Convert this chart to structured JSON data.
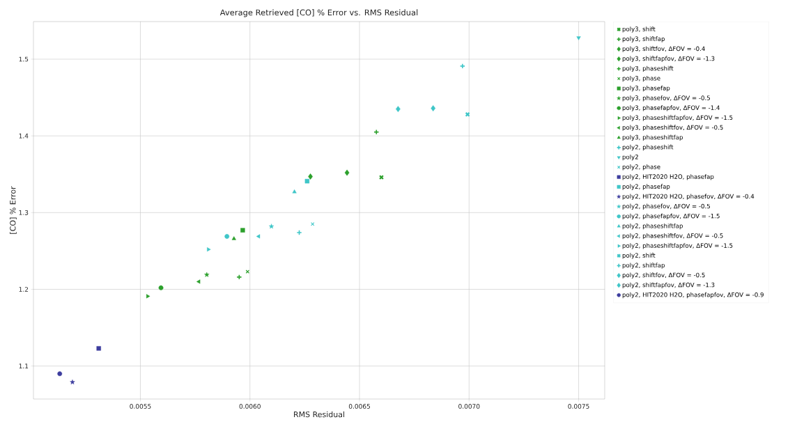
{
  "chart_data": {
    "type": "scatter",
    "title": "Average Retrieved [CO] % Error vs. RMS Residual",
    "xlabel": "RMS Residual",
    "ylabel": "[CO] % Error",
    "xlim": [
      0.005012,
      0.007619
    ],
    "ylim": [
      1.057,
      1.549
    ],
    "xticks": [
      0.0055,
      {
        "value": 0.006,
        "label": "0.0060"
      },
      0.0065,
      {
        "value": 0.007,
        "label": "0.0070"
      },
      0.0075
    ],
    "yticks": [
      1.1,
      1.2,
      1.3,
      1.4,
      1.5
    ],
    "grid": true,
    "legend": "right",
    "series": [
      {
        "name": "poly3, shift",
        "color": "#2ca02c",
        "marker": "X",
        "x": [
          0.0066
        ],
        "values": [
          1.346
        ]
      },
      {
        "name": "poly3, shiftfap",
        "color": "#2ca02c",
        "marker": "plus",
        "x": [
          0.006577
        ],
        "values": [
          1.405
        ]
      },
      {
        "name": "poly3, shiftfov, ΔFOV = -0.4",
        "color": "#2ca02c",
        "marker": "diamond",
        "x": [
          0.006443
        ],
        "values": [
          1.352
        ]
      },
      {
        "name": "poly3, shiftfapfov, ΔFOV = -1.3",
        "color": "#2ca02c",
        "marker": "diamond",
        "x": [
          0.006276
        ],
        "values": [
          1.347
        ]
      },
      {
        "name": "poly3, phaseshift",
        "color": "#2ca02c",
        "marker": "plus",
        "x": [
          0.005951
        ],
        "values": [
          1.216
        ]
      },
      {
        "name": "poly3, phase",
        "color": "#2ca02c",
        "marker": "cross",
        "x": [
          0.005989
        ],
        "values": [
          1.223
        ]
      },
      {
        "name": "poly3, phasefap",
        "color": "#2ca02c",
        "marker": "square",
        "x": [
          0.005967
        ],
        "values": [
          1.277
        ]
      },
      {
        "name": "poly3, phasefov, ΔFOV = -0.5",
        "color": "#2ca02c",
        "marker": "star",
        "x": [
          0.005803
        ],
        "values": [
          1.219
        ]
      },
      {
        "name": "poly3, phasefapfov, ΔFOV = -1.4",
        "color": "#2ca02c",
        "marker": "circle",
        "x": [
          0.005594
        ],
        "values": [
          1.202
        ]
      },
      {
        "name": "poly3, phaseshiftfapfov, ΔFOV = -1.5",
        "color": "#2ca02c",
        "marker": "triangle_right",
        "x": [
          0.005533
        ],
        "values": [
          1.191
        ]
      },
      {
        "name": "poly3, phaseshiftfov, ΔFOV = -0.5",
        "color": "#2ca02c",
        "marker": "triangle_left",
        "x": [
          0.005767
        ],
        "values": [
          1.21
        ]
      },
      {
        "name": "poly3, phaseshiftfap",
        "color": "#2ca02c",
        "marker": "triangle",
        "x": [
          0.005927
        ],
        "values": [
          1.266
        ]
      },
      {
        "name": "poly2, phaseshift",
        "color": "#3fc6c8",
        "marker": "plus",
        "x": [
          0.006225
        ],
        "values": [
          1.274
        ]
      },
      {
        "name": "poly2",
        "color": "#3fc6c8",
        "marker": "triangle_down",
        "x": [
          0.0075
        ],
        "values": [
          1.528
        ]
      },
      {
        "name": "poly2, phase",
        "color": "#3fc6c8",
        "marker": "cross",
        "x": [
          0.006286
        ],
        "values": [
          1.285
        ]
      },
      {
        "name": "poly2, HIT2020 H2O, phasefap",
        "color": "#3d3d9e",
        "marker": "square",
        "x": [
          0.00531
        ],
        "values": [
          1.123
        ]
      },
      {
        "name": "poly2, phasefap",
        "color": "#3fc6c8",
        "marker": "square",
        "x": [
          0.006261
        ],
        "values": [
          1.341
        ]
      },
      {
        "name": "poly2, HIT2020 H2O, phasefov, ΔFOV = -0.4",
        "color": "#3d3d9e",
        "marker": "star",
        "x": [
          0.00519
        ],
        "values": [
          1.079
        ]
      },
      {
        "name": "poly2, phasefov, ΔFOV = -0.5",
        "color": "#3fc6c8",
        "marker": "star",
        "x": [
          0.006098
        ],
        "values": [
          1.282
        ]
      },
      {
        "name": "poly2, phasefapfov, ΔFOV = -1.5",
        "color": "#3fc6c8",
        "marker": "circle",
        "x": [
          0.005895
        ],
        "values": [
          1.269
        ]
      },
      {
        "name": "poly2, phaseshiftfap",
        "color": "#3fc6c8",
        "marker": "triangle",
        "x": [
          0.006203
        ],
        "values": [
          1.327
        ]
      },
      {
        "name": "poly2, phaseshiftfov, ΔFOV = -0.5",
        "color": "#3fc6c8",
        "marker": "triangle_left",
        "x": [
          0.00604
        ],
        "values": [
          1.269
        ]
      },
      {
        "name": "poly2, phaseshiftfapfov, ΔFOV = -1.5",
        "color": "#3fc6c8",
        "marker": "triangle_right",
        "x": [
          0.00581
        ],
        "values": [
          1.252
        ]
      },
      {
        "name": "poly2, shift",
        "color": "#3fc6c8",
        "marker": "X",
        "x": [
          0.006993
        ],
        "values": [
          1.428
        ]
      },
      {
        "name": "poly2, shiftfap",
        "color": "#3fc6c8",
        "marker": "plus",
        "x": [
          0.00697
        ],
        "values": [
          1.491
        ]
      },
      {
        "name": "poly2, shiftfov, ΔFOV = -0.5",
        "color": "#3fc6c8",
        "marker": "diamond",
        "x": [
          0.006836
        ],
        "values": [
          1.436
        ]
      },
      {
        "name": "poly2, shiftfapfov, ΔFOV = -1.3",
        "color": "#3fc6c8",
        "marker": "diamond",
        "x": [
          0.006676
        ],
        "values": [
          1.435
        ]
      },
      {
        "name": "poly2, HIT2020 H2O, phasefapfov, ΔFOV = -0.9",
        "color": "#3d3d9e",
        "marker": "circle",
        "x": [
          0.005132
        ],
        "values": [
          1.09
        ]
      }
    ]
  }
}
